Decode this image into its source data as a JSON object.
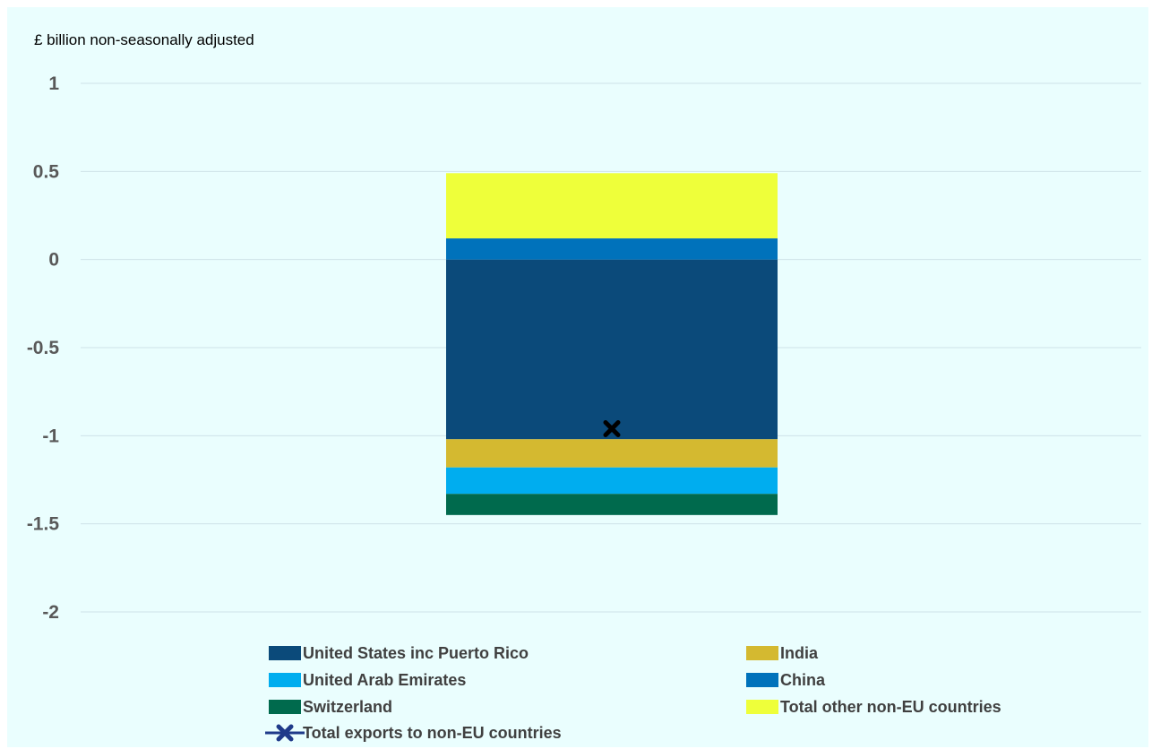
{
  "chart_data": {
    "type": "bar",
    "stacked": true,
    "unit_label": "£ billion non-seasonally adjusted",
    "ylim": [
      -2,
      1
    ],
    "yticks": [
      {
        "value": 1,
        "label": "1"
      },
      {
        "value": 0.5,
        "label": "0.5"
      },
      {
        "value": 0,
        "label": "0"
      },
      {
        "value": -0.5,
        "label": "-0.5"
      },
      {
        "value": -1,
        "label": "-1"
      },
      {
        "value": -1.5,
        "label": "-1.5"
      },
      {
        "value": -2,
        "label": "-2"
      }
    ],
    "grid": true,
    "categories": [
      ""
    ],
    "series": [
      {
        "name": "United States inc Puerto Rico",
        "color": "#0b4a7a",
        "values": [
          -1.02
        ]
      },
      {
        "name": "India",
        "color": "#d4b930",
        "values": [
          -0.16
        ]
      },
      {
        "name": "United Arab Emirates",
        "color": "#00adef",
        "values": [
          -0.15
        ]
      },
      {
        "name": "China",
        "color": "#0072bb",
        "values": [
          0.12
        ]
      },
      {
        "name": "Switzerland",
        "color": "#006a4d",
        "values": [
          -0.12
        ]
      },
      {
        "name": "Total other non-EU countries",
        "color": "#eeff3a",
        "values": [
          0.37
        ]
      }
    ],
    "total_series": {
      "name": "Total exports to non-EU countries",
      "color": "#000000",
      "legend_color": "#1f3a8a",
      "values": [
        -0.96
      ]
    },
    "legend_position": "bottom"
  }
}
